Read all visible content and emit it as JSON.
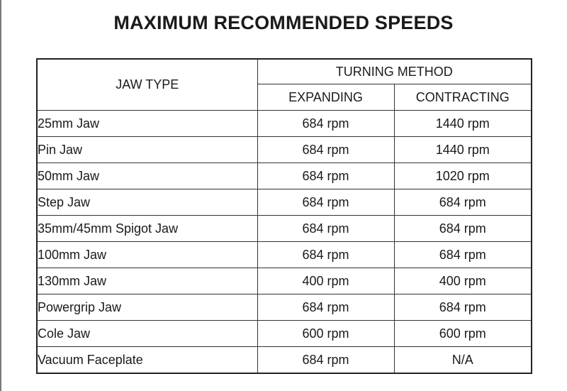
{
  "title": "MAXIMUM RECOMMENDED SPEEDS",
  "table": {
    "jaw_type_header": "JAW TYPE",
    "method_header": "TURNING METHOD",
    "sub_headers": [
      "EXPANDING",
      "CONTRACTING"
    ],
    "rows": [
      {
        "jaw": "25mm Jaw",
        "expanding": "684 rpm",
        "contracting": "1440 rpm"
      },
      {
        "jaw": "Pin Jaw",
        "expanding": "684 rpm",
        "contracting": "1440 rpm"
      },
      {
        "jaw": "50mm Jaw",
        "expanding": "684 rpm",
        "contracting": "1020 rpm"
      },
      {
        "jaw": "Step Jaw",
        "expanding": "684 rpm",
        "contracting": "684 rpm"
      },
      {
        "jaw": "35mm/45mm Spigot Jaw",
        "expanding": "684 rpm",
        "contracting": "684 rpm"
      },
      {
        "jaw": "100mm Jaw",
        "expanding": "684 rpm",
        "contracting": "684 rpm"
      },
      {
        "jaw": "130mm Jaw",
        "expanding": "400 rpm",
        "contracting": "400 rpm"
      },
      {
        "jaw": "Powergrip Jaw",
        "expanding": "684 rpm",
        "contracting": "684 rpm"
      },
      {
        "jaw": "Cole Jaw",
        "expanding": "600 rpm",
        "contracting": "600 rpm"
      },
      {
        "jaw": "Vacuum Faceplate",
        "expanding": "684 rpm",
        "contracting": "N/A"
      }
    ]
  }
}
